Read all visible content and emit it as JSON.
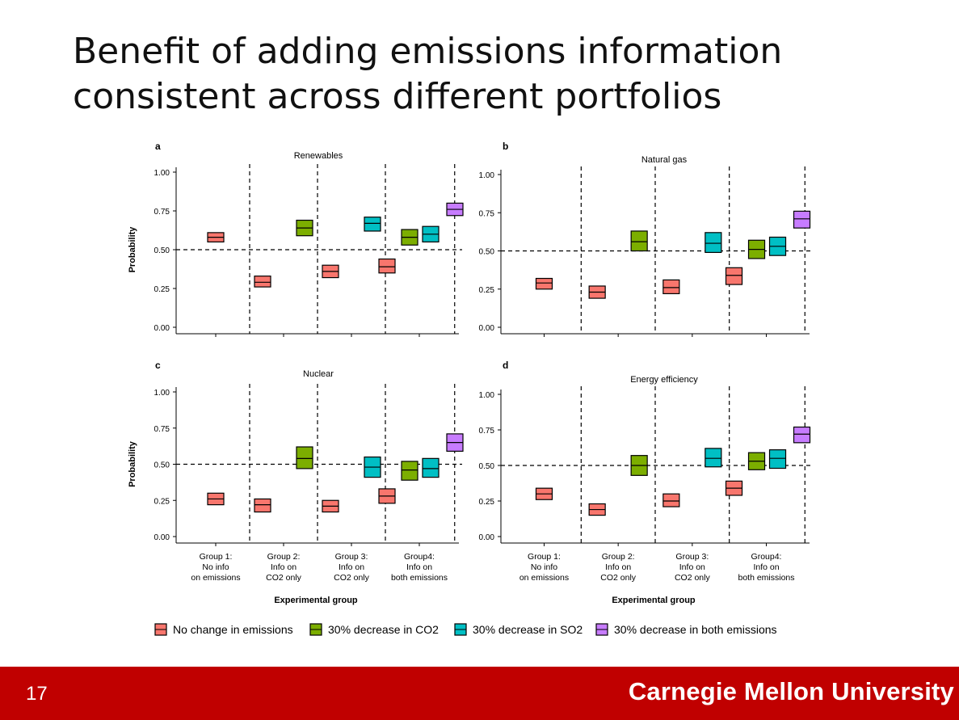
{
  "slide": {
    "title_line1": "Benefit of adding emissions information",
    "title_line2": "consistent across different portfolios",
    "page_number": "17",
    "university": "Carnegie Mellon University",
    "footer_color": "#c00000"
  },
  "chart_data": {
    "type": "box",
    "xlabel": "Experimental group",
    "ylabel": "Probability",
    "ylim": [
      0,
      1
    ],
    "yticks": [
      "0.00",
      "0.25",
      "0.50",
      "0.75",
      "1.00"
    ],
    "reference_line": 0.5,
    "groups": [
      [
        "Group 1:",
        "No info",
        "on emissions"
      ],
      [
        "Group 2:",
        "Info on",
        "CO2 only"
      ],
      [
        "Group 3:",
        "Info on",
        "CO2 only"
      ],
      [
        "Group4:",
        "Info on",
        "both emissions"
      ]
    ],
    "legend": {
      "placement": "bottom",
      "items": [
        {
          "label": "No change in emissions",
          "color": "#f8766d"
        },
        {
          "label": "30% decrease in CO2",
          "color": "#7cae00"
        },
        {
          "label": "30% decrease in SO2",
          "color": "#00bfc4"
        },
        {
          "label": "30% decrease in both emissions",
          "color": "#c77cff"
        }
      ]
    },
    "panels": [
      {
        "letter": "a",
        "title": "Renewables",
        "boxes": [
          {
            "group": 1,
            "series": 0,
            "low": 0.55,
            "mid": 0.58,
            "high": 0.61
          },
          {
            "group": 2,
            "series": 0,
            "low": 0.26,
            "mid": 0.29,
            "high": 0.33
          },
          {
            "group": 2,
            "series": 1,
            "low": 0.59,
            "mid": 0.64,
            "high": 0.69
          },
          {
            "group": 3,
            "series": 0,
            "low": 0.32,
            "mid": 0.36,
            "high": 0.4
          },
          {
            "group": 3,
            "series": 2,
            "low": 0.62,
            "mid": 0.67,
            "high": 0.71
          },
          {
            "group": 4,
            "series": 0,
            "low": 0.35,
            "mid": 0.39,
            "high": 0.44
          },
          {
            "group": 4,
            "series": 1,
            "low": 0.53,
            "mid": 0.58,
            "high": 0.63
          },
          {
            "group": 4,
            "series": 2,
            "low": 0.55,
            "mid": 0.6,
            "high": 0.65
          },
          {
            "group": 4,
            "series": 3,
            "low": 0.72,
            "mid": 0.76,
            "high": 0.8
          }
        ]
      },
      {
        "letter": "b",
        "title": "Natural gas",
        "boxes": [
          {
            "group": 1,
            "series": 0,
            "low": 0.25,
            "mid": 0.29,
            "high": 0.32
          },
          {
            "group": 2,
            "series": 0,
            "low": 0.19,
            "mid": 0.23,
            "high": 0.27
          },
          {
            "group": 2,
            "series": 1,
            "low": 0.5,
            "mid": 0.56,
            "high": 0.63
          },
          {
            "group": 3,
            "series": 0,
            "low": 0.22,
            "mid": 0.26,
            "high": 0.31
          },
          {
            "group": 3,
            "series": 2,
            "low": 0.49,
            "mid": 0.55,
            "high": 0.62
          },
          {
            "group": 4,
            "series": 0,
            "low": 0.28,
            "mid": 0.34,
            "high": 0.39
          },
          {
            "group": 4,
            "series": 1,
            "low": 0.45,
            "mid": 0.51,
            "high": 0.57
          },
          {
            "group": 4,
            "series": 2,
            "low": 0.47,
            "mid": 0.53,
            "high": 0.59
          },
          {
            "group": 4,
            "series": 3,
            "low": 0.65,
            "mid": 0.71,
            "high": 0.76
          }
        ]
      },
      {
        "letter": "c",
        "title": "Nuclear",
        "boxes": [
          {
            "group": 1,
            "series": 0,
            "low": 0.22,
            "mid": 0.26,
            "high": 0.3
          },
          {
            "group": 2,
            "series": 0,
            "low": 0.17,
            "mid": 0.22,
            "high": 0.26
          },
          {
            "group": 2,
            "series": 1,
            "low": 0.47,
            "mid": 0.54,
            "high": 0.62
          },
          {
            "group": 3,
            "series": 0,
            "low": 0.17,
            "mid": 0.21,
            "high": 0.25
          },
          {
            "group": 3,
            "series": 2,
            "low": 0.41,
            "mid": 0.48,
            "high": 0.55
          },
          {
            "group": 4,
            "series": 0,
            "low": 0.23,
            "mid": 0.28,
            "high": 0.33
          },
          {
            "group": 4,
            "series": 1,
            "low": 0.39,
            "mid": 0.46,
            "high": 0.52
          },
          {
            "group": 4,
            "series": 2,
            "low": 0.41,
            "mid": 0.47,
            "high": 0.54
          },
          {
            "group": 4,
            "series": 3,
            "low": 0.59,
            "mid": 0.65,
            "high": 0.71
          }
        ]
      },
      {
        "letter": "d",
        "title": "Energy efficiency",
        "boxes": [
          {
            "group": 1,
            "series": 0,
            "low": 0.26,
            "mid": 0.3,
            "high": 0.34
          },
          {
            "group": 2,
            "series": 0,
            "low": 0.15,
            "mid": 0.19,
            "high": 0.23
          },
          {
            "group": 2,
            "series": 1,
            "low": 0.43,
            "mid": 0.5,
            "high": 0.57
          },
          {
            "group": 3,
            "series": 0,
            "low": 0.21,
            "mid": 0.25,
            "high": 0.3
          },
          {
            "group": 3,
            "series": 2,
            "low": 0.49,
            "mid": 0.55,
            "high": 0.62
          },
          {
            "group": 4,
            "series": 0,
            "low": 0.29,
            "mid": 0.34,
            "high": 0.39
          },
          {
            "group": 4,
            "series": 1,
            "low": 0.47,
            "mid": 0.53,
            "high": 0.59
          },
          {
            "group": 4,
            "series": 2,
            "low": 0.48,
            "mid": 0.55,
            "high": 0.61
          },
          {
            "group": 4,
            "series": 3,
            "low": 0.66,
            "mid": 0.72,
            "high": 0.77
          }
        ]
      }
    ]
  }
}
